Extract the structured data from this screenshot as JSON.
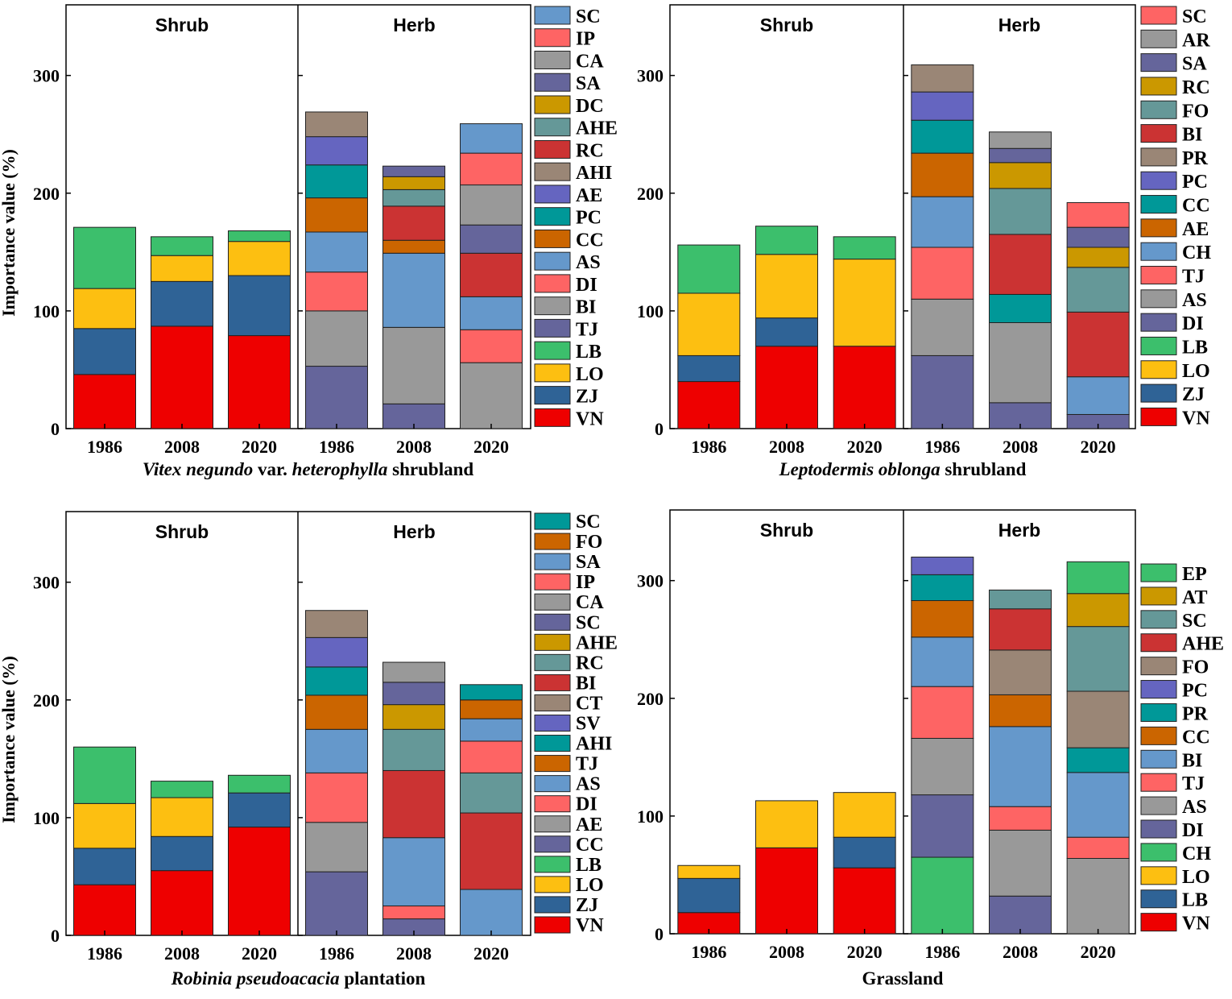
{
  "chart_data": [
    {
      "type": "bar",
      "stacked": true,
      "title_parts": [
        {
          "text": "Vitex negundo",
          "italic": true
        },
        {
          "text": " var. ",
          "italic": false
        },
        {
          "text": "heterophylla",
          "italic": true
        },
        {
          "text": " shrubland",
          "italic": false
        }
      ],
      "ylabel": "Importance value (%)",
      "ylim": [
        0,
        360
      ],
      "yticks": [
        0,
        100,
        200,
        300
      ],
      "sections": [
        "Shrub",
        "Herb"
      ],
      "categories": [
        "1986",
        "2008",
        "2020"
      ],
      "shrub": [
        [
          {
            "sp": "VN",
            "v": 46
          },
          {
            "sp": "ZJ",
            "v": 39
          },
          {
            "sp": "LO",
            "v": 34
          },
          {
            "sp": "LB",
            "v": 52
          }
        ],
        [
          {
            "sp": "VN",
            "v": 87
          },
          {
            "sp": "ZJ",
            "v": 38
          },
          {
            "sp": "LO",
            "v": 22
          },
          {
            "sp": "LB",
            "v": 16
          }
        ],
        [
          {
            "sp": "VN",
            "v": 79
          },
          {
            "sp": "ZJ",
            "v": 51
          },
          {
            "sp": "LO",
            "v": 29
          },
          {
            "sp": "LB",
            "v": 9
          }
        ]
      ],
      "herb": [
        [
          {
            "sp": "TJ",
            "v": 53
          },
          {
            "sp": "BI",
            "v": 47
          },
          {
            "sp": "DI",
            "v": 33
          },
          {
            "sp": "AS",
            "v": 34
          },
          {
            "sp": "CC",
            "v": 29
          },
          {
            "sp": "PC",
            "v": 28
          },
          {
            "sp": "AE",
            "v": 24
          },
          {
            "sp": "AHI",
            "v": 21
          }
        ],
        [
          {
            "sp": "TJ",
            "v": 21
          },
          {
            "sp": "BI",
            "v": 65
          },
          {
            "sp": "AS",
            "v": 63
          },
          {
            "sp": "CC",
            "v": 11
          },
          {
            "sp": "RC",
            "v": 29
          },
          {
            "sp": "AHE",
            "v": 14
          },
          {
            "sp": "DC",
            "v": 11
          },
          {
            "sp": "SA",
            "v": 9
          }
        ],
        [
          {
            "sp": "CA",
            "v": 56
          },
          {
            "sp": "IP",
            "v": 28
          },
          {
            "sp": "SC",
            "v": 28
          },
          {
            "sp": "RC",
            "v": 37
          },
          {
            "sp": "SA",
            "v": 24
          },
          {
            "sp": "CA",
            "v": 34
          },
          {
            "sp": "IP",
            "v": 27
          },
          {
            "sp": "SC",
            "v": 25
          }
        ]
      ],
      "legend": [
        "SC",
        "IP",
        "CA",
        "SA",
        "DC",
        "AHE",
        "RC",
        "AHI",
        "AE",
        "PC",
        "CC",
        "AS",
        "DI",
        "BI",
        "TJ",
        "LB",
        "LO",
        "ZJ",
        "VN"
      ]
    },
    {
      "type": "bar",
      "stacked": true,
      "title_parts": [
        {
          "text": "Leptodermis oblonga",
          "italic": true
        },
        {
          "text": " shrubland",
          "italic": false
        }
      ],
      "ylabel": "",
      "ylim": [
        0,
        360
      ],
      "yticks": [
        0,
        100,
        200,
        300
      ],
      "sections": [
        "Shrub",
        "Herb"
      ],
      "categories": [
        "1986",
        "2008",
        "2020"
      ],
      "shrub": [
        [
          {
            "sp": "VN",
            "v": 40
          },
          {
            "sp": "ZJ",
            "v": 22
          },
          {
            "sp": "LO",
            "v": 53
          },
          {
            "sp": "LB",
            "v": 41
          }
        ],
        [
          {
            "sp": "VN",
            "v": 70
          },
          {
            "sp": "ZJ",
            "v": 24
          },
          {
            "sp": "LO",
            "v": 54
          },
          {
            "sp": "LB",
            "v": 24
          }
        ],
        [
          {
            "sp": "VN",
            "v": 70
          },
          {
            "sp": "LO",
            "v": 74
          },
          {
            "sp": "LB",
            "v": 19
          }
        ]
      ],
      "herb": [
        [
          {
            "sp": "DI",
            "v": 62
          },
          {
            "sp": "AS",
            "v": 48
          },
          {
            "sp": "TJ",
            "v": 44
          },
          {
            "sp": "CH",
            "v": 43
          },
          {
            "sp": "AE",
            "v": 37
          },
          {
            "sp": "CC",
            "v": 28
          },
          {
            "sp": "PC",
            "v": 24
          },
          {
            "sp": "PR",
            "v": 23
          }
        ],
        [
          {
            "sp": "DI",
            "v": 22
          },
          {
            "sp": "AS",
            "v": 68
          },
          {
            "sp": "CC",
            "v": 24
          },
          {
            "sp": "BI",
            "v": 51
          },
          {
            "sp": "FO",
            "v": 39
          },
          {
            "sp": "RC",
            "v": 22
          },
          {
            "sp": "SA",
            "v": 12
          },
          {
            "sp": "AR",
            "v": 14
          }
        ],
        [
          {
            "sp": "DI",
            "v": 12
          },
          {
            "sp": "CH",
            "v": 32
          },
          {
            "sp": "BI",
            "v": 55
          },
          {
            "sp": "FO",
            "v": 38
          },
          {
            "sp": "RC",
            "v": 17
          },
          {
            "sp": "SA",
            "v": 17
          },
          {
            "sp": "SC",
            "v": 21
          }
        ]
      ],
      "legend": [
        "SC",
        "AR",
        "SA",
        "RC",
        "FO",
        "BI",
        "PR",
        "PC",
        "CC",
        "AE",
        "CH",
        "TJ",
        "AS",
        "DI",
        "LB",
        "LO",
        "ZJ",
        "VN"
      ]
    },
    {
      "type": "bar",
      "stacked": true,
      "title_parts": [
        {
          "text": "Robinia pseudoacacia",
          "italic": true
        },
        {
          "text": " plantation",
          "italic": false
        }
      ],
      "ylabel": "Importance value (%)",
      "ylim": [
        0,
        360
      ],
      "yticks": [
        0,
        100,
        200,
        300
      ],
      "sections": [
        "Shrub",
        "Herb"
      ],
      "categories": [
        "1986",
        "2008",
        "2020"
      ],
      "shrub": [
        [
          {
            "sp": "VN",
            "v": 43
          },
          {
            "sp": "ZJ",
            "v": 31
          },
          {
            "sp": "LO",
            "v": 38
          },
          {
            "sp": "LB",
            "v": 48
          }
        ],
        [
          {
            "sp": "VN",
            "v": 55
          },
          {
            "sp": "ZJ",
            "v": 29
          },
          {
            "sp": "LO",
            "v": 33
          },
          {
            "sp": "LB",
            "v": 14
          }
        ],
        [
          {
            "sp": "VN",
            "v": 92
          },
          {
            "sp": "ZJ",
            "v": 29
          },
          {
            "sp": "LB",
            "v": 15
          }
        ]
      ],
      "herb": [
        [
          {
            "sp": "CC",
            "v": 54
          },
          {
            "sp": "AE",
            "v": 42
          },
          {
            "sp": "DI",
            "v": 42
          },
          {
            "sp": "AS",
            "v": 37
          },
          {
            "sp": "TJ",
            "v": 29
          },
          {
            "sp": "AHI",
            "v": 24
          },
          {
            "sp": "SV",
            "v": 25
          },
          {
            "sp": "CT",
            "v": 23
          }
        ],
        [
          {
            "sp": "CC",
            "v": 14
          },
          {
            "sp": "DI",
            "v": 11
          },
          {
            "sp": "AS",
            "v": 58
          },
          {
            "sp": "BI",
            "v": 57
          },
          {
            "sp": "RC",
            "v": 35
          },
          {
            "sp": "AHE",
            "v": 21
          },
          {
            "sp": "SC",
            "v": 19
          },
          {
            "sp": "CA",
            "v": 17
          }
        ],
        [
          {
            "sp": "SA",
            "v": 39
          },
          {
            "sp": "BI",
            "v": 65
          },
          {
            "sp": "RC",
            "v": 34
          },
          {
            "sp": "IP",
            "v": 27
          },
          {
            "sp": "SA",
            "v": 19
          },
          {
            "sp": "FO",
            "v": 16
          },
          {
            "sp": "SC",
            "v": 13
          }
        ]
      ],
      "legend": [
        "SC",
        "FO",
        "SA",
        "IP",
        "CA",
        "SC",
        "AHE",
        "RC",
        "BI",
        "CT",
        "SV",
        "AHI",
        "TJ",
        "AS",
        "DI",
        "AE",
        "CC",
        "LB",
        "LO",
        "ZJ",
        "VN"
      ]
    },
    {
      "type": "bar",
      "stacked": true,
      "title_parts": [
        {
          "text": "Grassland",
          "italic": false
        }
      ],
      "ylabel": "",
      "ylim": [
        0,
        360
      ],
      "yticks": [
        0,
        100,
        200,
        300
      ],
      "sections": [
        "Shrub",
        "Herb"
      ],
      "categories": [
        "1986",
        "2008",
        "2020"
      ],
      "shrub": [
        [
          {
            "sp": "VN",
            "v": 18
          },
          {
            "sp": "LB",
            "v": 29
          },
          {
            "sp": "LO",
            "v": 11
          }
        ],
        [
          {
            "sp": "VN",
            "v": 73
          },
          {
            "sp": "LO",
            "v": 40
          }
        ],
        [
          {
            "sp": "VN",
            "v": 56
          },
          {
            "sp": "LB",
            "v": 26
          },
          {
            "sp": "LO",
            "v": 38
          }
        ]
      ],
      "herb": [
        [
          {
            "sp": "CH",
            "v": 65
          },
          {
            "sp": "DI",
            "v": 53
          },
          {
            "sp": "AS",
            "v": 48
          },
          {
            "sp": "TJ",
            "v": 44
          },
          {
            "sp": "BI",
            "v": 42
          },
          {
            "sp": "CC",
            "v": 31
          },
          {
            "sp": "PR",
            "v": 22
          },
          {
            "sp": "PC",
            "v": 15
          }
        ],
        [
          {
            "sp": "DI",
            "v": 32
          },
          {
            "sp": "AS",
            "v": 56
          },
          {
            "sp": "TJ",
            "v": 20
          },
          {
            "sp": "BI",
            "v": 68
          },
          {
            "sp": "CC",
            "v": 27
          },
          {
            "sp": "FO",
            "v": 38
          },
          {
            "sp": "AHE",
            "v": 35
          },
          {
            "sp": "SC",
            "v": 16
          }
        ],
        [
          {
            "sp": "AS",
            "v": 64
          },
          {
            "sp": "TJ",
            "v": 18
          },
          {
            "sp": "BI",
            "v": 55
          },
          {
            "sp": "PR",
            "v": 21
          },
          {
            "sp": "FO",
            "v": 48
          },
          {
            "sp": "SC",
            "v": 55
          },
          {
            "sp": "AT",
            "v": 28
          },
          {
            "sp": "EP",
            "v": 27
          }
        ]
      ],
      "legend": [
        "EP",
        "AT",
        "SC",
        "AHE",
        "FO",
        "PC",
        "PR",
        "CC",
        "BI",
        "TJ",
        "AS",
        "DI",
        "CH",
        "LO",
        "LB",
        "VN"
      ]
    }
  ],
  "colors": {
    "panel0": {
      "VN": "#ee0000",
      "ZJ": "#2f6396",
      "LO": "#fdbf11",
      "LB": "#3cbf6c",
      "TJ": "#65659b",
      "BI": "#999999",
      "DI": "#fe6464",
      "AS": "#6598cb",
      "CC": "#cb6500",
      "PC": "#009898",
      "AE": "#6565c0",
      "AHI": "#9a8676",
      "RC": "#cb3333",
      "AHE": "#659898",
      "DC": "#cb9800",
      "SA": "#65659b",
      "CA": "#999999",
      "IP": "#fe6464",
      "SC": "#6598cb"
    },
    "panel1": {
      "VN": "#ee0000",
      "ZJ": "#2f6396",
      "LO": "#fdbf11",
      "LB": "#3cbf6c",
      "DI": "#65659b",
      "AS": "#999999",
      "TJ": "#fe6464",
      "CH": "#6598cb",
      "AE": "#cb6500",
      "CC": "#009898",
      "PC": "#6565c0",
      "PR": "#9a8676",
      "BI": "#cb3333",
      "FO": "#659898",
      "RC": "#cb9800",
      "SA": "#65659b",
      "AR": "#999999",
      "SC": "#fe6464"
    },
    "panel2": {
      "VN": "#ee0000",
      "ZJ": "#2f6396",
      "LO": "#fdbf11",
      "LB": "#3cbf6c",
      "CC": "#65659b",
      "AE": "#999999",
      "DI": "#fe6464",
      "AS": "#6598cb",
      "TJ": "#cb6500",
      "AHI": "#009898",
      "SV": "#6565c0",
      "CT": "#9a8676",
      "BI": "#cb3333",
      "RC": "#659898",
      "AHE": "#cb9800",
      "SC": "#65659b",
      "CA": "#999999",
      "IP": "#fe6464",
      "SA": "#6598cb",
      "FO": "#cb6500",
      "SC2": "#009898"
    },
    "panel3": {
      "VN": "#ee0000",
      "LB": "#2f6396",
      "LO": "#fdbf11",
      "CH": "#3cbf6c",
      "DI": "#65659b",
      "AS": "#999999",
      "TJ": "#fe6464",
      "BI": "#6598cb",
      "CC": "#cb6500",
      "PR": "#009898",
      "PC": "#6565c0",
      "FO": "#9a8676",
      "AHE": "#cb3333",
      "SC": "#659898",
      "AT": "#cb9800",
      "EP": "#3cbf6c"
    }
  }
}
